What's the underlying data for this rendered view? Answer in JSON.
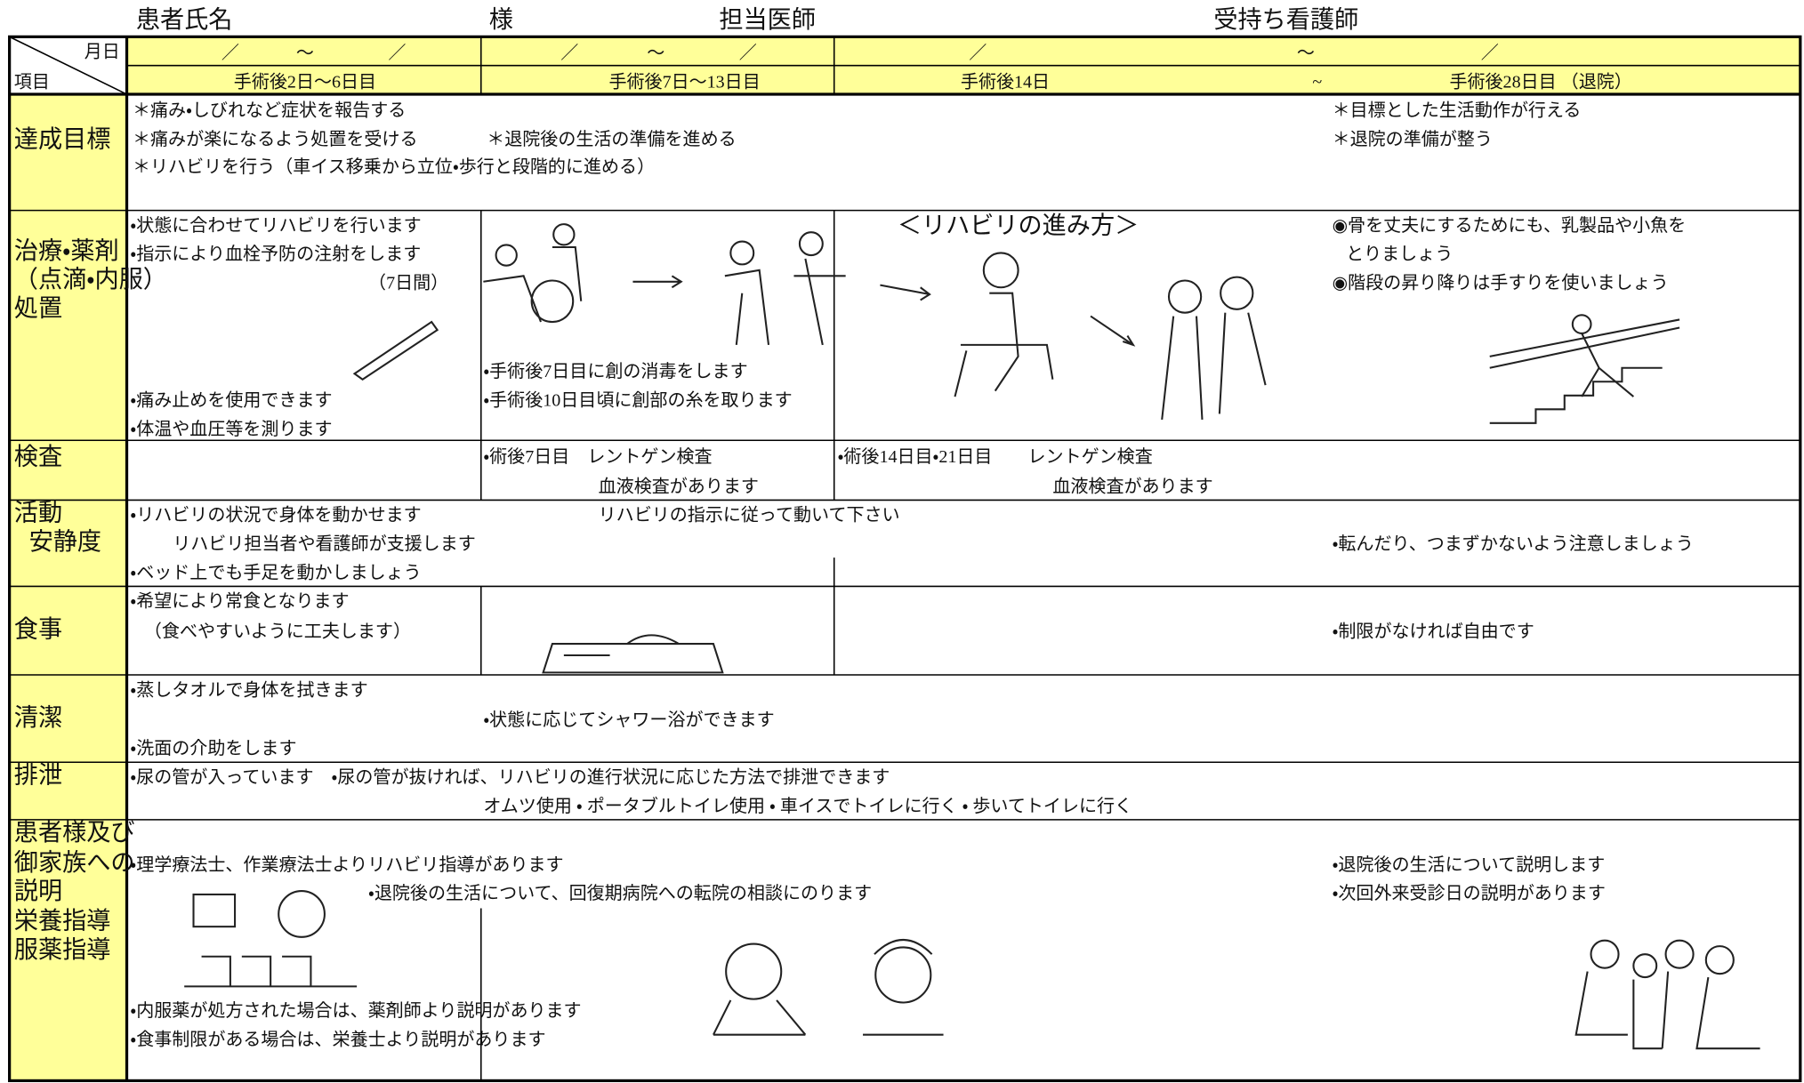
{
  "header": {
    "patient_name": "患者氏名",
    "sama": "様",
    "doctor": "担当医師",
    "nurse": "受持ち看護師"
  },
  "table": {
    "corner": {
      "top": "月日",
      "bottom": "項目"
    },
    "date_marks": [
      "／",
      "〜",
      "／",
      "／",
      "〜",
      "／",
      "／",
      "〜",
      "／"
    ],
    "periods": [
      "手術後2日〜6日目",
      "手術後7日〜13日目",
      "手術後14日",
      "~",
      "手術後28日目 （退院）"
    ],
    "rows": [
      {
        "label": [
          "達成目標"
        ],
        "items": [
          "＊痛み・しびれなど症状を報告する",
          "＊痛みが楽になるよう処置を受ける",
          "＊退院後の生活の準備を進める",
          "＊リハビリを行う（車イス移乗から立位・歩行と段階的に進める）",
          "＊目標とした生活動作が行える",
          "＊退院の準備が整う"
        ]
      },
      {
        "label": [
          "治療・薬剤",
          "（点滴・内服）",
          "処置"
        ],
        "items": [
          "・状態に合わせてリハビリを行います",
          "・指示により血栓予防の注射をします",
          "（7日間）",
          "・痛み止めを使用できます",
          "・体温や血圧等を測ります",
          "・手術後7日目に創の消毒をします",
          "・手術後10日目頃に創部の糸を取ります",
          "＜リハビリの進み方＞",
          "◉骨を丈夫にするためにも、乳製品や小魚を",
          "とりましょう",
          "◉階段の昇り降りは手すりを使いましょう"
        ]
      },
      {
        "label": [
          "検査"
        ],
        "items": [
          "・術後7日目　レントゲン検査",
          "血液検査があります",
          "・術後14日目・21日目　　レントゲン検査",
          "血液検査があります"
        ]
      },
      {
        "label": [
          "活動",
          "安静度"
        ],
        "items": [
          "・リハビリの状況で身体を動かせます",
          "リハビリの指示に従って動いて下さい",
          "リハビリ担当者や看護師が支援します",
          "・転んだり、つまずかないよう注意しましょう",
          "・ベッド上でも手足を動かしましょう"
        ]
      },
      {
        "label": [
          "食事"
        ],
        "items": [
          "・希望により常食となります",
          "（食べやすいように工夫します）",
          "・制限がなければ自由です"
        ]
      },
      {
        "label": [
          "清潔"
        ],
        "items": [
          "・蒸しタオルで身体を拭きます",
          "・状態に応じてシャワー浴ができます",
          "・洗面の介助をします"
        ]
      },
      {
        "label": [
          "排泄"
        ],
        "items": [
          "・尿の管が入っています　・尿の管が抜ければ、リハビリの進行状況に応じた方法で排泄できます",
          "オムツ使用 ・ ポータブルトイレ使用 ・ 車イスでトイレに行く ・ 歩いてトイレに行く"
        ]
      },
      {
        "label": [
          "患者様及び",
          "御家族への",
          "説明",
          "栄養指導",
          "服薬指導"
        ],
        "items": [
          "・理学療法士、作業療法士よりリハビリ指導があります",
          "・退院後の生活について、回復期病院への転院の相談にのります",
          "・内服薬が処方された場合は、薬剤師より説明があります",
          "・食事制限がある場合は、栄養士より説明があります",
          "・退院後の生活について説明します",
          "・次回外来受診日の説明があります"
        ]
      }
    ]
  }
}
